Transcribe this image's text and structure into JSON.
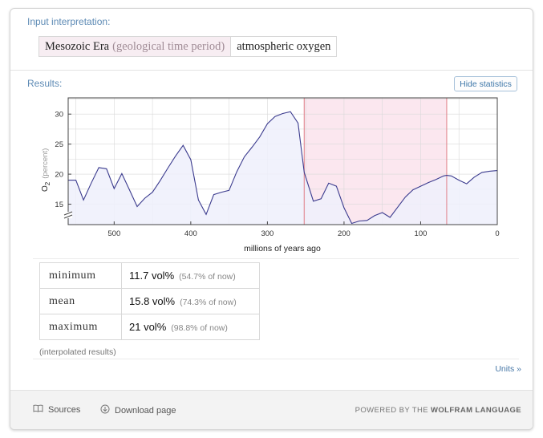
{
  "interpretation": {
    "label": "Input interpretation:",
    "era": "Mesozoic Era",
    "era_qualifier": "(geological time period)",
    "property": "atmospheric oxygen"
  },
  "results": {
    "label": "Results:",
    "hide_statistics_label": "Hide statistics"
  },
  "chart_data": {
    "type": "line",
    "xlabel": "millions of years ago",
    "ylabel_main": "O",
    "ylabel_sub": "2",
    "ylabel_unit": "(percent)",
    "xlim": [
      560,
      0
    ],
    "ylim": [
      11.6,
      32.7
    ],
    "x_ticks": [
      500,
      400,
      300,
      200,
      100,
      0
    ],
    "y_ticks": [
      15,
      20,
      25,
      30
    ],
    "highlight_range": [
      252,
      66
    ],
    "colors": {
      "line": "#3b3b8e",
      "fill": "#eef0fb",
      "highlight_fill": "#fbe7ef",
      "highlight_edge": "#e07d86",
      "grid": "#d9d9d9"
    },
    "series": [
      {
        "x": [
          560,
          550,
          540,
          530,
          520,
          510,
          500,
          490,
          480,
          470,
          460,
          450,
          440,
          430,
          420,
          410,
          400,
          390,
          380,
          370,
          360,
          350,
          340,
          330,
          320,
          310,
          300,
          290,
          280,
          270,
          260,
          252,
          240,
          230,
          220,
          210,
          200,
          190,
          180,
          170,
          160,
          150,
          140,
          130,
          120,
          110,
          100,
          90,
          80,
          70,
          66,
          60,
          50,
          40,
          30,
          20,
          10,
          0
        ],
        "y": [
          19,
          19,
          15.7,
          18.5,
          21.1,
          20.9,
          17.6,
          20.1,
          17.4,
          14.6,
          16,
          17,
          18.9,
          21,
          23,
          24.8,
          22.4,
          15.7,
          13.3,
          16.6,
          17,
          17.3,
          20.4,
          22.9,
          24.5,
          26.2,
          28.4,
          29.6,
          30.1,
          30.4,
          28.5,
          20.3,
          15.5,
          15.9,
          18.5,
          18,
          14.4,
          11.8,
          12.2,
          12.3,
          13.1,
          13.6,
          12.8,
          14.5,
          16.2,
          17.4,
          18,
          18.6,
          19.1,
          19.7,
          19.8,
          19.7,
          19,
          18.4,
          19.5,
          20.3,
          20.5,
          20.6
        ]
      }
    ]
  },
  "statistics": {
    "rows": [
      {
        "name": "minimum",
        "value": "11.7 vol%",
        "percent_of_now": "(54.7% of now)"
      },
      {
        "name": "mean",
        "value": "15.8 vol%",
        "percent_of_now": "(74.3% of now)"
      },
      {
        "name": "maximum",
        "value": "21 vol%",
        "percent_of_now": "(98.8% of now)"
      }
    ],
    "note": "(interpolated results)",
    "units_link": "Units »"
  },
  "footer": {
    "sources": "Sources",
    "download": "Download page",
    "powered_prefix": "POWERED BY THE",
    "powered_brand": "WOLFRAM LANGUAGE"
  }
}
